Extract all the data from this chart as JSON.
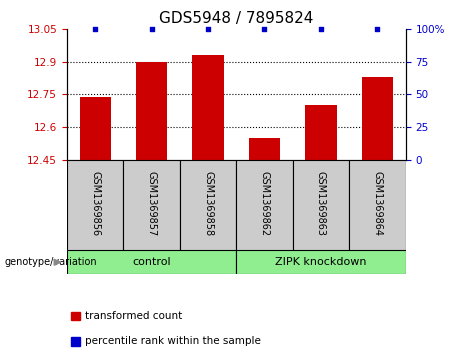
{
  "title": "GDS5948 / 7895824",
  "samples": [
    "GSM1369856",
    "GSM1369857",
    "GSM1369858",
    "GSM1369862",
    "GSM1369863",
    "GSM1369864"
  ],
  "bar_values": [
    12.74,
    12.9,
    12.93,
    12.55,
    12.7,
    12.83
  ],
  "percentile_values": [
    100,
    100,
    100,
    100,
    100,
    100
  ],
  "ylim_left": [
    12.45,
    13.05
  ],
  "ylim_right": [
    0,
    100
  ],
  "yticks_left": [
    12.45,
    12.6,
    12.75,
    12.9,
    13.05
  ],
  "yticks_right": [
    0,
    25,
    50,
    75,
    100
  ],
  "ytick_labels_left": [
    "12.45",
    "12.6",
    "12.75",
    "12.9",
    "13.05"
  ],
  "ytick_labels_right": [
    "0",
    "25",
    "50",
    "75",
    "100%"
  ],
  "hlines": [
    12.6,
    12.75,
    12.9
  ],
  "bar_color": "#cc0000",
  "dot_color": "#0000cc",
  "group1_label": "control",
  "group2_label": "ZIPK knockdown",
  "group1_indices": [
    0,
    1,
    2
  ],
  "group2_indices": [
    3,
    4,
    5
  ],
  "group_color": "#90ee90",
  "sample_box_color": "#cccccc",
  "legend_transformed": "transformed count",
  "legend_percentile": "percentile rank within the sample",
  "genotype_label": "genotype/variation",
  "title_fontsize": 11,
  "tick_fontsize": 7.5,
  "sample_fontsize": 7,
  "group_fontsize": 8,
  "legend_fontsize": 7.5
}
